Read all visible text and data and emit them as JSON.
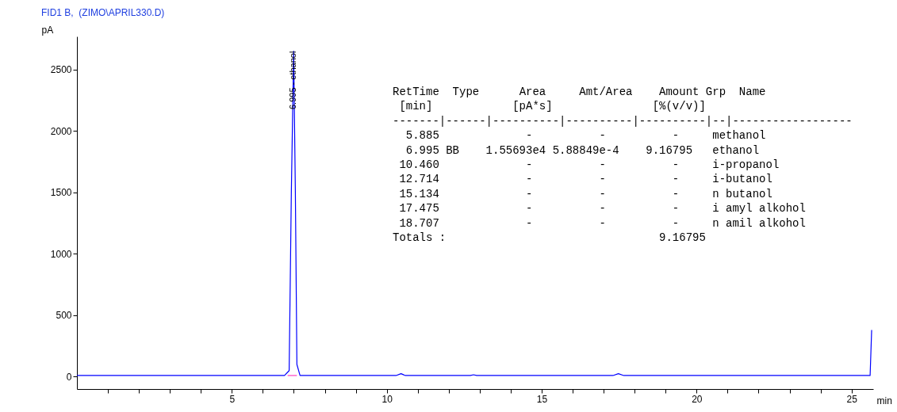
{
  "chart_data": {
    "type": "line",
    "title": "FID1 B,  (ZIMO\\APRIL330.D)",
    "xlabel": "min",
    "ylabel": "pA",
    "xlim": [
      0,
      25.7
    ],
    "ylim": [
      -100,
      2770
    ],
    "xticks": [
      {
        "value": 1,
        "label": null
      },
      {
        "value": 2,
        "label": null
      },
      {
        "value": 3,
        "label": null
      },
      {
        "value": 4,
        "label": null
      },
      5,
      {
        "value": 6,
        "label": null
      },
      {
        "value": 7,
        "label": null
      },
      {
        "value": 8,
        "label": null
      },
      {
        "value": 9,
        "label": null
      },
      10,
      {
        "value": 11,
        "label": null
      },
      {
        "value": 12,
        "label": null
      },
      {
        "value": 13,
        "label": null
      },
      {
        "value": 14,
        "label": null
      },
      15,
      {
        "value": 16,
        "label": null
      },
      {
        "value": 17,
        "label": null
      },
      {
        "value": 18,
        "label": null
      },
      {
        "value": 19,
        "label": null
      },
      20,
      {
        "value": 21,
        "label": null
      },
      {
        "value": 22,
        "label": null
      },
      {
        "value": 23,
        "label": null
      },
      {
        "value": 24,
        "label": null
      },
      25
    ],
    "yticks": [
      0,
      500,
      1000,
      1500,
      2000,
      2500
    ],
    "grid": false,
    "marker": "none",
    "line_style": "solid",
    "series": [
      {
        "color": "#0000ff",
        "x": [
          0,
          6.7,
          6.85,
          6.92,
          6.995,
          7.05,
          7.1,
          7.2,
          10.3,
          10.46,
          10.6,
          12.7,
          12.8,
          12.9,
          17.3,
          17.475,
          17.65,
          25.6,
          25.65
        ],
        "values": [
          10,
          10,
          50,
          1500,
          2650,
          1500,
          100,
          10,
          10,
          25,
          10,
          10,
          16,
          10,
          10,
          25,
          10,
          10,
          380
        ]
      },
      {
        "color": "#ff40c0",
        "x": [
          6.8,
          7.1
        ],
        "values": [
          10,
          10
        ]
      }
    ],
    "annotations": [
      {
        "text": "6.995 - ethanol",
        "x": 6.995,
        "y": 2650
      },
      "RetTime  Type      Area     Amt/Area    Amount Grp  Name",
      " [min]            [pA*s]               [%(v/v)]",
      "-------|------|----------|----------|----------|--|------------------",
      "  5.885             -          -          -     methanol",
      "  6.995 BB    1.55693e4 5.88849e-4    9.16795   ethanol",
      " 10.460             -          -          -     i-propanol",
      " 12.714             -          -          -     i-butanol",
      " 15.134             -          -          -     n butanol",
      " 17.475             -          -          -     i amyl alkohol",
      " 18.707             -          -          -     n amil alkohol",
      "Totals :                                9.16795"
    ]
  }
}
